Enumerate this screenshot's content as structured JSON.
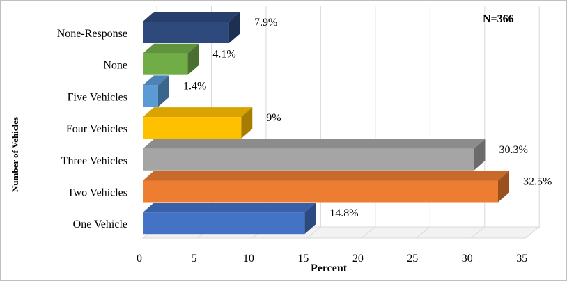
{
  "chart_data": {
    "type": "bar",
    "orientation": "horizontal",
    "style": "3d",
    "annotation": "N=366",
    "xlabel": "Percent",
    "ylabel": "Number of Vehicles",
    "xlim": [
      0,
      35
    ],
    "xticks": [
      "0",
      "5",
      "10",
      "15",
      "20",
      "25",
      "30",
      "35"
    ],
    "grid": true,
    "categories": [
      "None-Response",
      "None",
      "Five Vehicles",
      "Four Vehicles",
      "Three Vehicles",
      "Two Vehicles",
      "One Vehicle"
    ],
    "values": [
      7.9,
      4.1,
      1.4,
      9,
      30.3,
      32.5,
      14.8
    ],
    "labels": [
      "7.9%",
      "4.1%",
      "1.4%",
      "9%",
      "30.3%",
      "32.5%",
      "14.8%"
    ],
    "colors": [
      "#2E4A7D",
      "#70AD47",
      "#5B9BD5",
      "#FFC000",
      "#A5A5A5",
      "#ED7D31",
      "#4472C4"
    ]
  }
}
